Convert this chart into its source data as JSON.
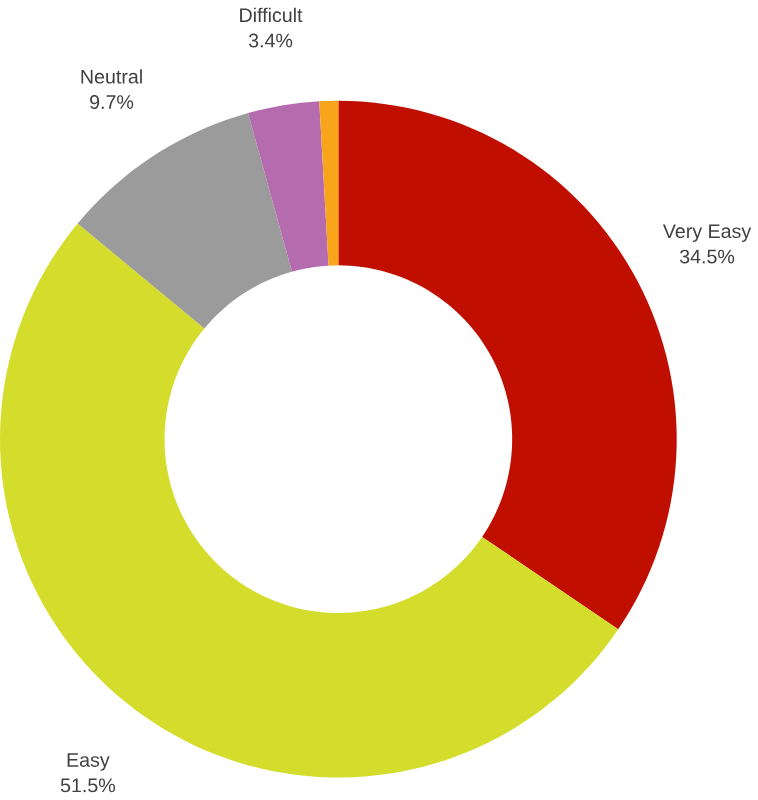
{
  "chart_data": {
    "type": "donut",
    "categories": [
      "Very Easy",
      "Easy",
      "Neutral",
      "Difficult",
      null
    ],
    "values": [
      34.5,
      51.5,
      9.7,
      3.4,
      0.9
    ],
    "colors": [
      "#c00f00",
      "#d4dc2c",
      "#9b9b9b",
      "#b56cae",
      "#f9a51b"
    ],
    "value_labels": [
      "34.5%",
      "51.5%",
      "9.7%",
      "3.4%",
      null
    ]
  }
}
